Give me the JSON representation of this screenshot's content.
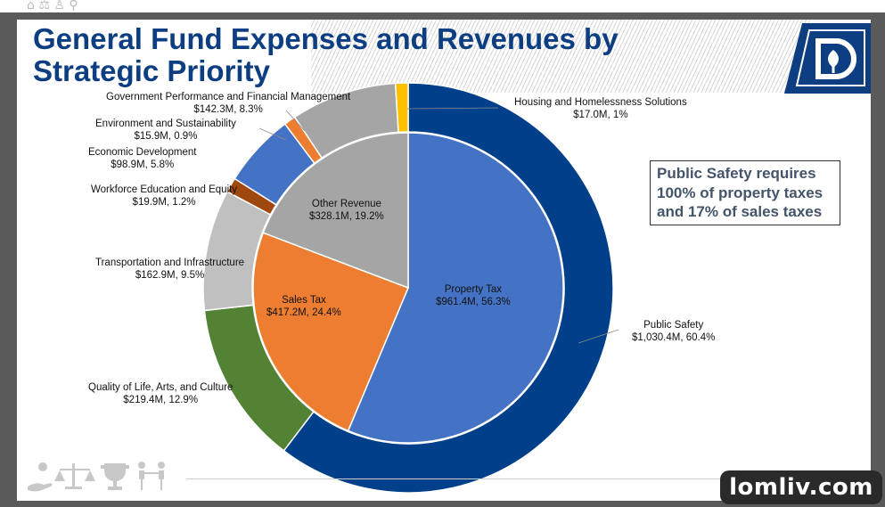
{
  "slide": {
    "title_line1": "General Fund Expenses and Revenues by",
    "title_line2": "Strategic Priority",
    "callout": [
      "Public Safety requires",
      "100% of property taxes",
      "and 17% of sales taxes"
    ],
    "watermark": "lomliv.com"
  },
  "colors": {
    "title": "#0e3e82",
    "public_safety": "#003f8a",
    "housing": "#ffc000",
    "government": "#a5a5a5",
    "environment": "#ed7d31",
    "economic": "#4472c4",
    "workforce": "#9e480e",
    "transportation": "#c0c0c0",
    "quality_of_life": "#548235",
    "property_tax": "#4472c4",
    "sales_tax": "#ed7d31",
    "other_revenue": "#a5a5a5"
  },
  "chart_data": {
    "type": "pie",
    "subtype": "nested-doughnut",
    "title": "General Fund Expenses and Revenues by Strategic Priority",
    "outer_ring": [
      {
        "name": "Public Safety",
        "amount": "$1,030.4M",
        "value": 1030.4,
        "percent": 60.4
      },
      {
        "name": "Quality of Life, Arts, and Culture",
        "amount": "$219.4M",
        "value": 219.4,
        "percent": 12.9
      },
      {
        "name": "Transportation and Infrastructure",
        "amount": "$162.9M",
        "value": 162.9,
        "percent": 9.5
      },
      {
        "name": "Workforce Education and Equity",
        "amount": "$19.9M",
        "value": 19.9,
        "percent": 1.2
      },
      {
        "name": "Economic Development",
        "amount": "$98.9M",
        "value": 98.9,
        "percent": 5.8
      },
      {
        "name": "Environment and Sustainability",
        "amount": "$15.9M",
        "value": 15.9,
        "percent": 0.9
      },
      {
        "name": "Government Performance and Financial Management",
        "amount": "$142.3M",
        "value": 142.3,
        "percent": 8.3
      },
      {
        "name": "Housing and Homelessness Solutions",
        "amount": "$17.0M",
        "value": 17.0,
        "percent": 1.0
      }
    ],
    "inner_pie": [
      {
        "name": "Property Tax",
        "amount": "$961.4M",
        "value": 961.4,
        "percent": 56.3
      },
      {
        "name": "Sales Tax",
        "amount": "$417.2M",
        "value": 417.2,
        "percent": 24.4
      },
      {
        "name": "Other Revenue",
        "amount": "$328.1M",
        "value": 328.1,
        "percent": 19.2
      }
    ]
  }
}
